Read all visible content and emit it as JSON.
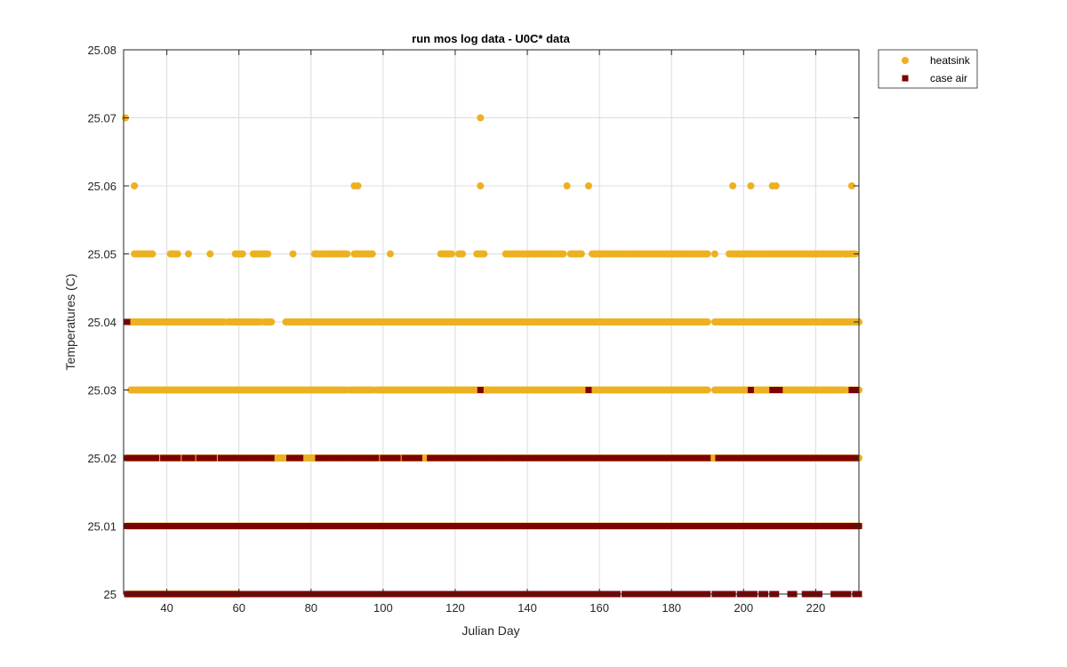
{
  "chart_data": {
    "type": "scatter",
    "title": "run mos log data - U0C* data",
    "xlabel": "Julian Day",
    "ylabel": "Temperatures (C)",
    "xlim": [
      28,
      232
    ],
    "ylim": [
      25.0,
      25.08
    ],
    "xticks": [
      40,
      60,
      80,
      100,
      120,
      140,
      160,
      180,
      200,
      220
    ],
    "yticks": [
      25,
      25.01,
      25.02,
      25.03,
      25.04,
      25.05,
      25.06,
      25.07,
      25.08
    ],
    "xtick_labels": [
      "40",
      "60",
      "80",
      "100",
      "120",
      "140",
      "160",
      "180",
      "200",
      "220"
    ],
    "ytick_labels": [
      "25",
      "25.01",
      "25.02",
      "25.03",
      "25.04",
      "25.05",
      "25.06",
      "25.07",
      "25.08"
    ],
    "grid": true,
    "legend_position": "outside-top-right",
    "series": [
      {
        "name": "heatsink",
        "marker": "circle",
        "color": "#EDB120",
        "levels": [
          {
            "y": 25.07,
            "x": [
              28.5,
              127
            ]
          },
          {
            "y": 25.06,
            "x": [
              31,
              92,
              93,
              127,
              151,
              157,
              197,
              202,
              208,
              209,
              230
            ]
          },
          {
            "y": 25.05,
            "ranges": [
              [
                31,
                36
              ],
              [
                41,
                43
              ],
              [
                46,
                46
              ],
              [
                52,
                52
              ],
              [
                59,
                61
              ],
              [
                64,
                68
              ],
              [
                75,
                75
              ],
              [
                81,
                90
              ],
              [
                92,
                97
              ],
              [
                102,
                102
              ],
              [
                116,
                119
              ],
              [
                121,
                122
              ],
              [
                126,
                128
              ],
              [
                134,
                150
              ],
              [
                152,
                155
              ],
              [
                158,
                190
              ],
              [
                192,
                192
              ],
              [
                196,
                227
              ],
              [
                228,
                231
              ]
            ]
          },
          {
            "y": 25.04,
            "ranges": [
              [
                30,
                56
              ],
              [
                57,
                66
              ],
              [
                67,
                69
              ],
              [
                73,
                190
              ],
              [
                192,
                232
              ]
            ]
          },
          {
            "y": 25.03,
            "ranges": [
              [
                30,
                90
              ],
              [
                91,
                97
              ],
              [
                98,
                190
              ],
              [
                192,
                228
              ],
              [
                229,
                232
              ]
            ]
          },
          {
            "y": 25.02,
            "ranges": [
              [
                29,
                232
              ]
            ]
          },
          {
            "y": 25.01,
            "ranges": [
              [
                29,
                232
              ]
            ]
          },
          {
            "y": 25.0,
            "ranges": [
              [
                29,
                60
              ]
            ]
          }
        ]
      },
      {
        "name": "case air",
        "marker": "square",
        "color": "#7E0000",
        "levels": [
          {
            "y": 25.04,
            "x": [
              29
            ]
          },
          {
            "y": 25.03,
            "x": [
              127,
              157,
              202,
              208,
              209,
              210,
              230,
              231
            ]
          },
          {
            "y": 25.02,
            "ranges": [
              [
                29,
                37
              ],
              [
                39,
                43
              ],
              [
                45,
                47
              ],
              [
                49,
                53
              ],
              [
                55,
                59
              ],
              [
                60,
                62
              ],
              [
                63,
                69
              ],
              [
                74,
                77
              ],
              [
                82,
                98
              ],
              [
                100,
                104
              ],
              [
                106,
                110
              ],
              [
                113,
                127
              ],
              [
                128,
                190
              ],
              [
                193,
                231
              ]
            ]
          },
          {
            "y": 25.01,
            "ranges": [
              [
                29,
                190
              ],
              [
                191.5,
                232
              ]
            ]
          },
          {
            "y": 25.0,
            "ranges": [
              [
                29,
                127
              ],
              [
                128,
                165
              ],
              [
                167,
                190
              ],
              [
                192,
                197
              ],
              [
                199,
                200
              ],
              [
                201,
                203
              ],
              [
                205,
                206
              ],
              [
                208,
                209
              ],
              [
                213,
                214
              ],
              [
                217,
                221
              ],
              [
                225,
                227
              ],
              [
                228,
                229
              ],
              [
                231,
                232
              ]
            ]
          }
        ]
      }
    ]
  }
}
